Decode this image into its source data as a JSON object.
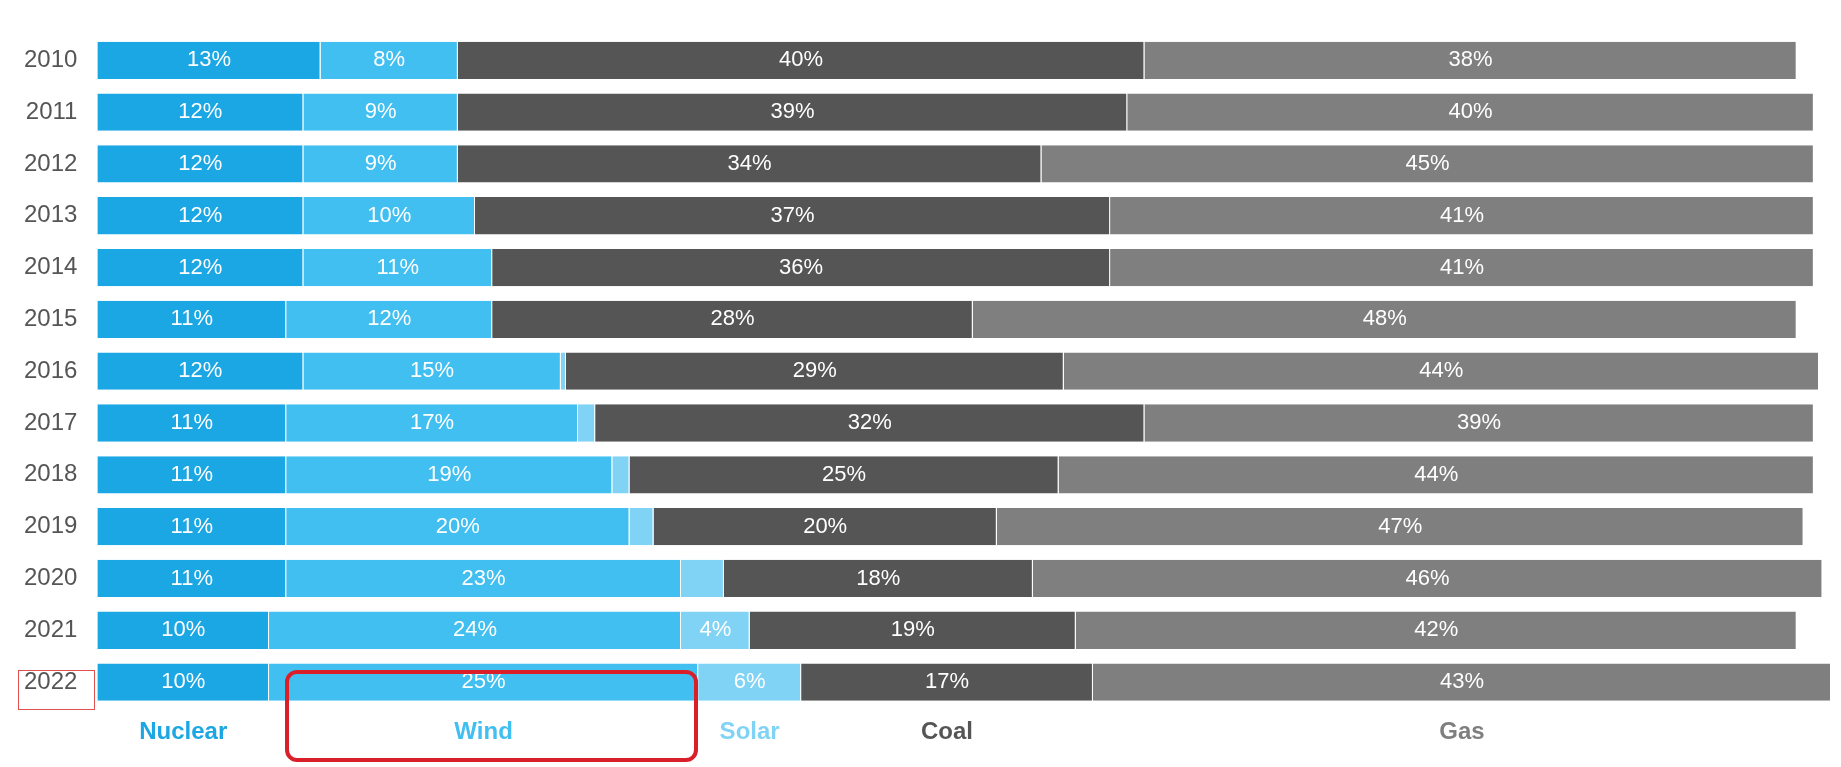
{
  "chart_data": {
    "type": "bar",
    "orientation": "horizontal",
    "stacked": true,
    "legend": "bottom",
    "categories": [
      "2010",
      "2011",
      "2012",
      "2013",
      "2014",
      "2015",
      "2016",
      "2017",
      "2018",
      "2019",
      "2020",
      "2021",
      "2022"
    ],
    "series": [
      {
        "name": "Nuclear",
        "color": "#1ba6e4",
        "values": [
          13,
          12,
          12,
          12,
          12,
          11,
          12,
          11,
          11,
          11,
          11,
          10,
          10
        ],
        "value_labels": [
          "13%",
          "12%",
          "12%",
          "12%",
          "12%",
          "11%",
          "12%",
          "11%",
          "11%",
          "11%",
          "11%",
          "10%",
          "10%"
        ]
      },
      {
        "name": "Wind",
        "color": "#41bff0",
        "values": [
          8,
          9,
          9,
          10,
          11,
          12,
          15,
          17,
          19,
          20,
          23,
          24,
          25
        ],
        "value_labels": [
          "8%",
          "9%",
          "9%",
          "10%",
          "11%",
          "12%",
          "15%",
          "17%",
          "19%",
          "20%",
          "23%",
          "24%",
          "25%"
        ]
      },
      {
        "name": "Solar",
        "color": "#80d3f5",
        "values": [
          0,
          0,
          0,
          0,
          0,
          0,
          0.3,
          1,
          1,
          1.4,
          2.5,
          4,
          6
        ],
        "value_labels": [
          null,
          null,
          null,
          null,
          null,
          null,
          null,
          null,
          null,
          null,
          null,
          "4%",
          "6%"
        ]
      },
      {
        "name": "Coal",
        "color": "#555555",
        "values": [
          40,
          39,
          34,
          37,
          36,
          28,
          29,
          32,
          25,
          20,
          18,
          19,
          17
        ],
        "value_labels": [
          "40%",
          "39%",
          "34%",
          "37%",
          "36%",
          "28%",
          "29%",
          "32%",
          "25%",
          "20%",
          "18%",
          "19%",
          "17%"
        ]
      },
      {
        "name": "Gas",
        "color": "#7f7f7f",
        "values": [
          38,
          40,
          45,
          41,
          41,
          48,
          44,
          39,
          44,
          47,
          46,
          42,
          43
        ],
        "value_labels": [
          "38%",
          "40%",
          "45%",
          "41%",
          "41%",
          "48%",
          "44%",
          "39%",
          "44%",
          "47%",
          "46%",
          "42%",
          "43%"
        ]
      }
    ]
  }
}
